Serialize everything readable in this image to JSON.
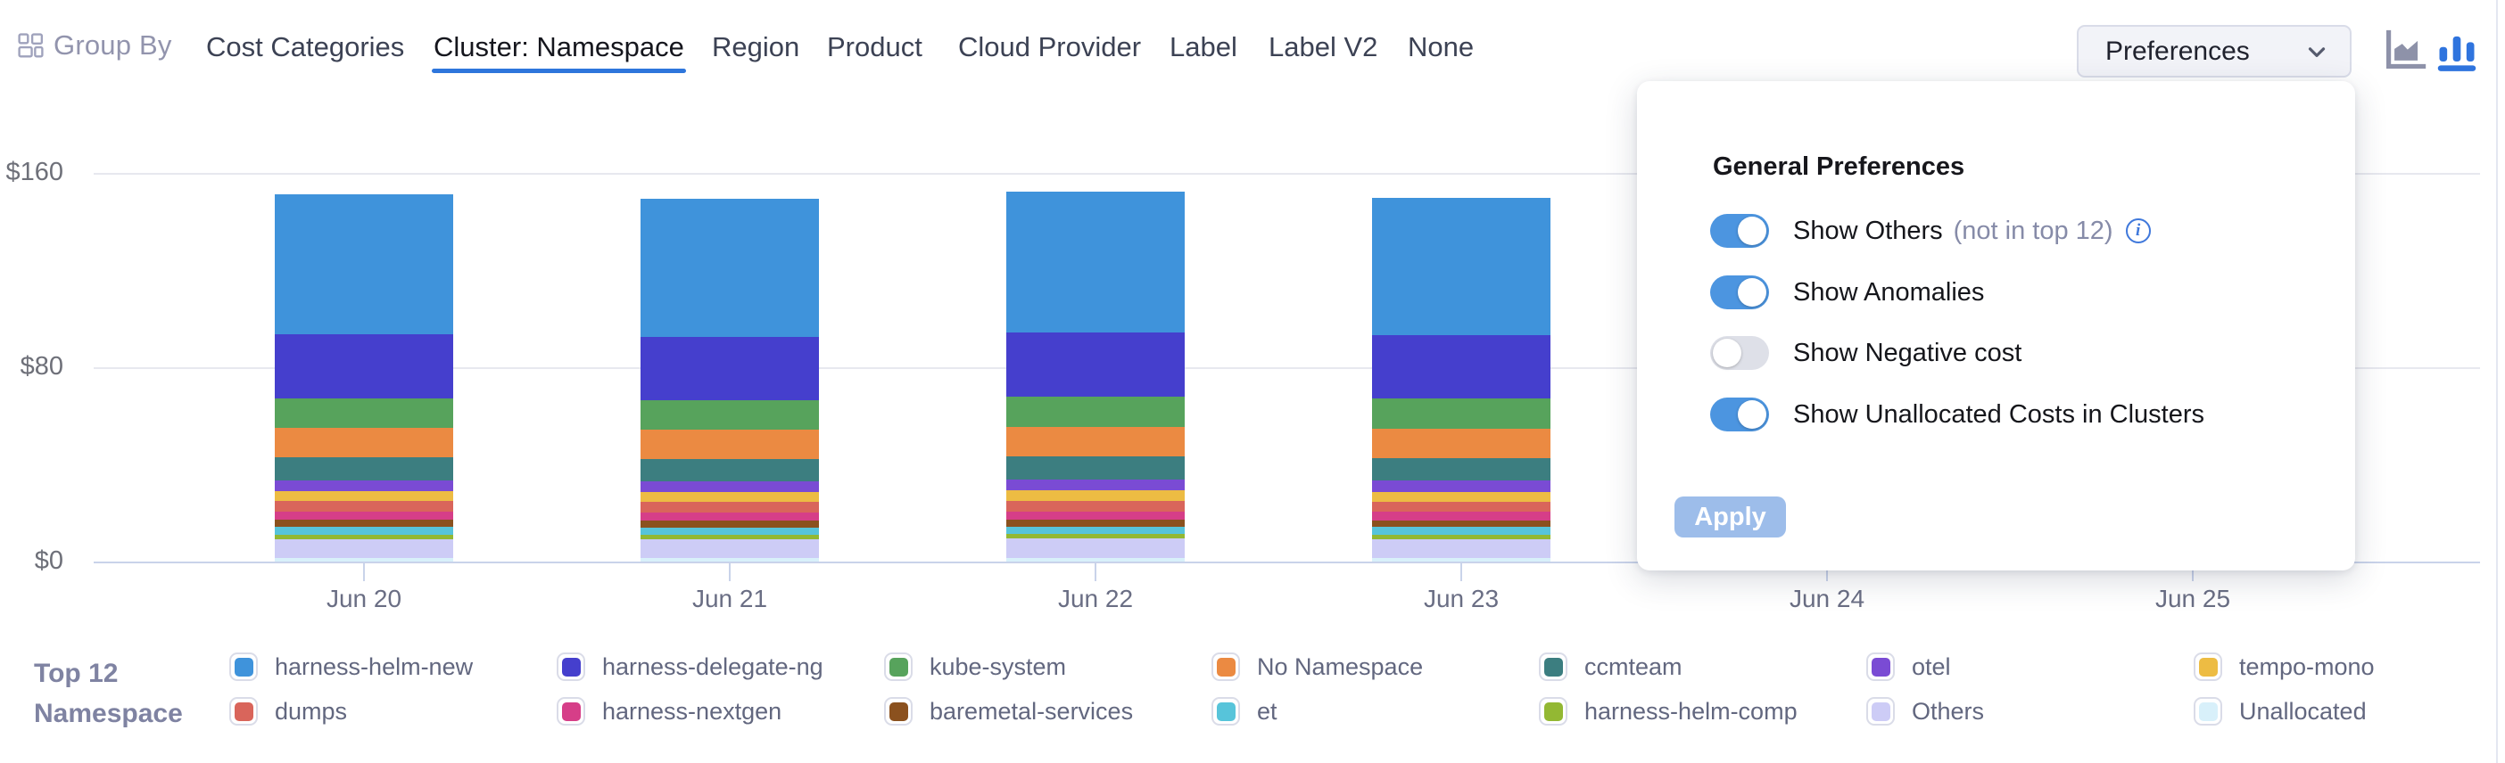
{
  "header": {
    "group_by_label": "Group By",
    "tabs": [
      {
        "label": "Cost Categories",
        "active": false
      },
      {
        "label": "Cluster: Namespace",
        "active": true
      },
      {
        "label": "Region",
        "active": false
      },
      {
        "label": "Product",
        "active": false
      },
      {
        "label": "Cloud Provider",
        "active": false
      },
      {
        "label": "Label",
        "active": false
      },
      {
        "label": "Label V2",
        "active": false
      },
      {
        "label": "None",
        "active": false
      }
    ],
    "preferences_button_label": "Preferences",
    "chart_type_icons": [
      {
        "name": "area-chart-icon",
        "active": false
      },
      {
        "name": "bar-chart-icon",
        "active": true
      }
    ]
  },
  "preferences_panel": {
    "title": "General Preferences",
    "toggles": [
      {
        "label": "Show Others",
        "note": "(not in top 12)",
        "info_icon": true,
        "on": true
      },
      {
        "label": "Show Anomalies",
        "note": "",
        "info_icon": false,
        "on": true
      },
      {
        "label": "Show Negative cost",
        "note": "",
        "info_icon": false,
        "on": false
      },
      {
        "label": "Show Unallocated Costs in Clusters",
        "note": "",
        "info_icon": false,
        "on": true
      }
    ],
    "apply_label": "Apply"
  },
  "legend": {
    "title_line1": "Top 12",
    "title_line2": "Namespace"
  },
  "chart_data": {
    "type": "bar",
    "stacked": true,
    "title": "",
    "xlabel": "",
    "ylabel": "",
    "currency_prefix": "$",
    "ylim": [
      0,
      160
    ],
    "y_ticks": [
      {
        "value": 0,
        "label": "$0"
      },
      {
        "value": 80,
        "label": "$80"
      },
      {
        "value": 160,
        "label": "$160"
      }
    ],
    "x": [
      "Jun 20",
      "Jun 21",
      "Jun 22",
      "Jun 23",
      "Jun 24",
      "Jun 25"
    ],
    "occlusion_note": "Columns for Jun 24 and Jun 25 are hidden behind the open Preferences popup",
    "series": [
      {
        "name": "harness-helm-new",
        "color": "#3f93db",
        "values": [
          57.8,
          56.9,
          58.2,
          56.6,
          null,
          null
        ]
      },
      {
        "name": "harness-delegate-ng",
        "color": "#453fcd",
        "values": [
          26.3,
          26.0,
          26.4,
          26.2,
          null,
          null
        ]
      },
      {
        "name": "kube-system",
        "color": "#57a35c",
        "values": [
          12.4,
          12.3,
          12.5,
          12.4,
          null,
          null
        ]
      },
      {
        "name": "No Namespace",
        "color": "#eb8a42",
        "values": [
          12.0,
          11.9,
          12.1,
          12.0,
          null,
          null
        ]
      },
      {
        "name": "ccmteam",
        "color": "#3c7e80",
        "values": [
          9.3,
          9.2,
          9.4,
          9.3,
          null,
          null
        ]
      },
      {
        "name": "otel",
        "color": "#7a4bd4",
        "values": [
          4.6,
          4.5,
          4.6,
          4.6,
          null,
          null
        ]
      },
      {
        "name": "tempo-mono",
        "color": "#edbc43",
        "values": [
          4.1,
          4.0,
          4.1,
          4.1,
          null,
          null
        ]
      },
      {
        "name": "dumps",
        "color": "#d9655b",
        "values": [
          4.4,
          4.3,
          4.4,
          4.3,
          null,
          null
        ]
      },
      {
        "name": "harness-nextgen",
        "color": "#d63e88",
        "values": [
          3.4,
          3.4,
          3.5,
          3.4,
          null,
          null
        ]
      },
      {
        "name": "baremetal-services",
        "color": "#8b511e",
        "values": [
          2.8,
          2.8,
          2.8,
          2.8,
          null,
          null
        ]
      },
      {
        "name": "et",
        "color": "#57c4da",
        "values": [
          3.1,
          3.0,
          3.1,
          3.0,
          null,
          null
        ]
      },
      {
        "name": "harness-helm-comp",
        "color": "#93b833",
        "values": [
          1.9,
          1.9,
          1.9,
          1.9,
          null,
          null
        ]
      },
      {
        "name": "Others",
        "color": "#cdccf6",
        "values": [
          7.8,
          7.7,
          7.9,
          7.8,
          null,
          null
        ]
      },
      {
        "name": "Unallocated",
        "color": "#d8f0fa",
        "values": [
          1.5,
          1.5,
          1.5,
          1.5,
          null,
          null
        ]
      }
    ],
    "legend_position": "bottom"
  },
  "colors": {
    "accent_blue": "#2e76dc",
    "toggle_on": "#4c95e0",
    "apply_disabled": "#9dbdea",
    "axis_line": "#c9d3ea",
    "gridline": "#e7e8ef",
    "tab_text": "#3c4254",
    "muted_text": "#9294ad",
    "legend_text": "#62677f"
  }
}
